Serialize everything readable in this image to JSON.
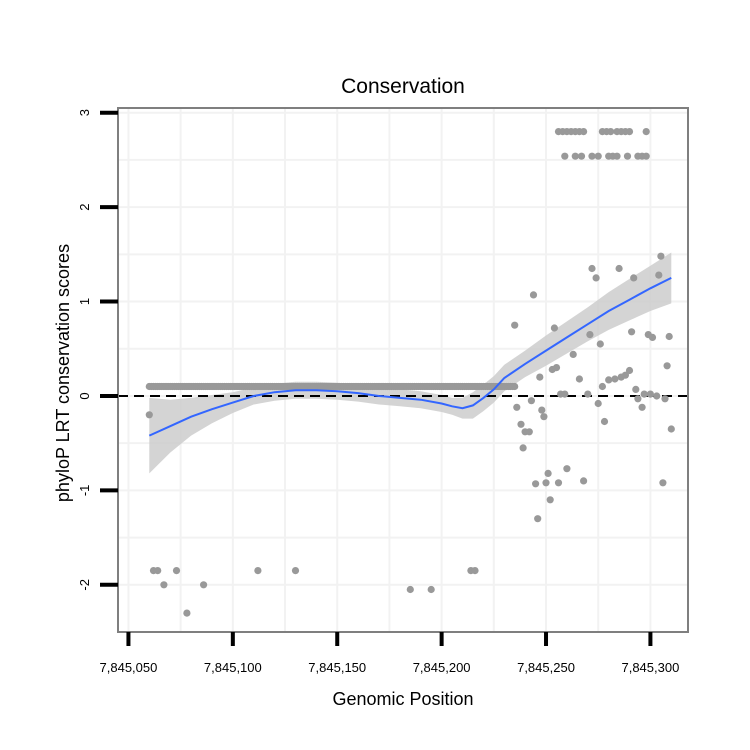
{
  "chart_data": {
    "type": "scatter",
    "title": "Conservation",
    "xlabel": "Genomic Position",
    "ylabel": "phyloP LRT conservation scores",
    "xlim": [
      7845045,
      7845318
    ],
    "ylim": [
      -2.5,
      3.05
    ],
    "x_ticks": [
      7845050,
      7845100,
      7845150,
      7845200,
      7845250,
      7845300
    ],
    "x_tick_labels": [
      "7,845,050",
      "7,845,100",
      "7,845,150",
      "7,845,200",
      "7,845,250",
      "7,845,300"
    ],
    "y_ticks": [
      -2,
      -1,
      0,
      1,
      2,
      3
    ],
    "y_tick_labels": [
      "-2",
      "-1",
      "0",
      "1",
      "2",
      "3"
    ],
    "reference_line_y": 0,
    "grid": true,
    "colors": {
      "points": "#999999",
      "smooth_line": "#3366ff",
      "confidence_band": "#cccccc",
      "panel_border": "#7f7f7f",
      "grid": "#f2f2f2",
      "reference_line": "#000000"
    },
    "dense_band": {
      "x_start": 7845060,
      "x_end": 7845235,
      "y": 0.1
    },
    "points": [
      {
        "x": 7845060,
        "y": -0.2
      },
      {
        "x": 7845062,
        "y": -1.85
      },
      {
        "x": 7845064,
        "y": -1.85
      },
      {
        "x": 7845067,
        "y": -2.0
      },
      {
        "x": 7845073,
        "y": -1.85
      },
      {
        "x": 7845078,
        "y": -2.3
      },
      {
        "x": 7845086,
        "y": -2.0
      },
      {
        "x": 7845112,
        "y": -1.85
      },
      {
        "x": 7845130,
        "y": -1.85
      },
      {
        "x": 7845185,
        "y": -2.05
      },
      {
        "x": 7845195,
        "y": -2.05
      },
      {
        "x": 7845214,
        "y": -1.85
      },
      {
        "x": 7845216,
        "y": -1.85
      },
      {
        "x": 7845235,
        "y": 0.75
      },
      {
        "x": 7845236,
        "y": -0.12
      },
      {
        "x": 7845238,
        "y": -0.3
      },
      {
        "x": 7845239,
        "y": -0.55
      },
      {
        "x": 7845240,
        "y": -0.38
      },
      {
        "x": 7845242,
        "y": -0.38
      },
      {
        "x": 7845243,
        "y": -0.05
      },
      {
        "x": 7845244,
        "y": 1.07
      },
      {
        "x": 7845245,
        "y": -0.93
      },
      {
        "x": 7845246,
        "y": -1.3
      },
      {
        "x": 7845247,
        "y": 0.2
      },
      {
        "x": 7845248,
        "y": -0.15
      },
      {
        "x": 7845249,
        "y": -0.22
      },
      {
        "x": 7845250,
        "y": -0.92
      },
      {
        "x": 7845251,
        "y": -0.82
      },
      {
        "x": 7845252,
        "y": -1.1
      },
      {
        "x": 7845253,
        "y": 0.28
      },
      {
        "x": 7845254,
        "y": 0.72
      },
      {
        "x": 7845255,
        "y": 0.3
      },
      {
        "x": 7845256,
        "y": -0.92
      },
      {
        "x": 7845257,
        "y": 0.02
      },
      {
        "x": 7845259,
        "y": 0.02
      },
      {
        "x": 7845260,
        "y": -0.77
      },
      {
        "x": 7845263,
        "y": 0.44
      },
      {
        "x": 7845266,
        "y": 0.18
      },
      {
        "x": 7845268,
        "y": -0.9
      },
      {
        "x": 7845270,
        "y": 0.02
      },
      {
        "x": 7845271,
        "y": 0.65
      },
      {
        "x": 7845272,
        "y": 1.35
      },
      {
        "x": 7845274,
        "y": 1.25
      },
      {
        "x": 7845275,
        "y": -0.08
      },
      {
        "x": 7845276,
        "y": 0.55
      },
      {
        "x": 7845277,
        "y": 0.1
      },
      {
        "x": 7845278,
        "y": -0.27
      },
      {
        "x": 7845280,
        "y": 0.17
      },
      {
        "x": 7845283,
        "y": 0.18
      },
      {
        "x": 7845285,
        "y": 1.35
      },
      {
        "x": 7845286,
        "y": 0.2
      },
      {
        "x": 7845288,
        "y": 0.22
      },
      {
        "x": 7845290,
        "y": 0.27
      },
      {
        "x": 7845291,
        "y": 0.68
      },
      {
        "x": 7845292,
        "y": 1.25
      },
      {
        "x": 7845293,
        "y": 0.07
      },
      {
        "x": 7845294,
        "y": -0.03
      },
      {
        "x": 7845296,
        "y": -0.12
      },
      {
        "x": 7845297,
        "y": 0.02
      },
      {
        "x": 7845299,
        "y": 0.65
      },
      {
        "x": 7845300,
        "y": 0.02
      },
      {
        "x": 7845301,
        "y": 0.62
      },
      {
        "x": 7845303,
        "y": 0.0
      },
      {
        "x": 7845304,
        "y": 1.28
      },
      {
        "x": 7845305,
        "y": 1.48
      },
      {
        "x": 7845306,
        "y": -0.92
      },
      {
        "x": 7845307,
        "y": -0.03
      },
      {
        "x": 7845308,
        "y": 0.32
      },
      {
        "x": 7845309,
        "y": 0.63
      },
      {
        "x": 7845310,
        "y": -0.35
      },
      {
        "x": 7845256,
        "y": 2.8
      },
      {
        "x": 7845258,
        "y": 2.8
      },
      {
        "x": 7845260,
        "y": 2.8
      },
      {
        "x": 7845262,
        "y": 2.8
      },
      {
        "x": 7845264,
        "y": 2.8
      },
      {
        "x": 7845266,
        "y": 2.8
      },
      {
        "x": 7845268,
        "y": 2.8
      },
      {
        "x": 7845277,
        "y": 2.8
      },
      {
        "x": 7845279,
        "y": 2.8
      },
      {
        "x": 7845281,
        "y": 2.8
      },
      {
        "x": 7845284,
        "y": 2.8
      },
      {
        "x": 7845286,
        "y": 2.8
      },
      {
        "x": 7845288,
        "y": 2.8
      },
      {
        "x": 7845290,
        "y": 2.8
      },
      {
        "x": 7845298,
        "y": 2.8
      },
      {
        "x": 7845259,
        "y": 2.54
      },
      {
        "x": 7845264,
        "y": 2.54
      },
      {
        "x": 7845267,
        "y": 2.54
      },
      {
        "x": 7845272,
        "y": 2.54
      },
      {
        "x": 7845275,
        "y": 2.54
      },
      {
        "x": 7845280,
        "y": 2.54
      },
      {
        "x": 7845282,
        "y": 2.54
      },
      {
        "x": 7845284,
        "y": 2.54
      },
      {
        "x": 7845289,
        "y": 2.54
      },
      {
        "x": 7845294,
        "y": 2.54
      },
      {
        "x": 7845296,
        "y": 2.54
      },
      {
        "x": 7845298,
        "y": 2.54
      }
    ],
    "smooth": {
      "x": [
        7845060,
        7845070,
        7845080,
        7845090,
        7845100,
        7845110,
        7845120,
        7845130,
        7845140,
        7845150,
        7845160,
        7845170,
        7845180,
        7845190,
        7845200,
        7845205,
        7845210,
        7845215,
        7845220,
        7845225,
        7845230,
        7845240,
        7845250,
        7845260,
        7845270,
        7845280,
        7845290,
        7845300,
        7845310
      ],
      "y": [
        -0.42,
        -0.32,
        -0.22,
        -0.14,
        -0.07,
        0.0,
        0.04,
        0.06,
        0.06,
        0.05,
        0.03,
        0.0,
        -0.02,
        -0.04,
        -0.08,
        -0.11,
        -0.13,
        -0.1,
        -0.02,
        0.07,
        0.19,
        0.34,
        0.48,
        0.62,
        0.76,
        0.9,
        1.02,
        1.14,
        1.25
      ],
      "lower": [
        -0.82,
        -0.6,
        -0.42,
        -0.29,
        -0.18,
        -0.09,
        -0.05,
        -0.03,
        -0.03,
        -0.04,
        -0.06,
        -0.09,
        -0.11,
        -0.13,
        -0.17,
        -0.2,
        -0.24,
        -0.24,
        -0.16,
        -0.07,
        0.05,
        0.2,
        0.32,
        0.45,
        0.58,
        0.7,
        0.8,
        0.9,
        0.98
      ],
      "upper": [
        -0.02,
        -0.04,
        -0.02,
        0.01,
        0.04,
        0.09,
        0.13,
        0.15,
        0.15,
        0.14,
        0.12,
        0.09,
        0.07,
        0.05,
        0.01,
        -0.02,
        -0.02,
        0.04,
        0.12,
        0.21,
        0.33,
        0.48,
        0.64,
        0.79,
        0.94,
        1.1,
        1.24,
        1.38,
        1.52
      ]
    }
  }
}
